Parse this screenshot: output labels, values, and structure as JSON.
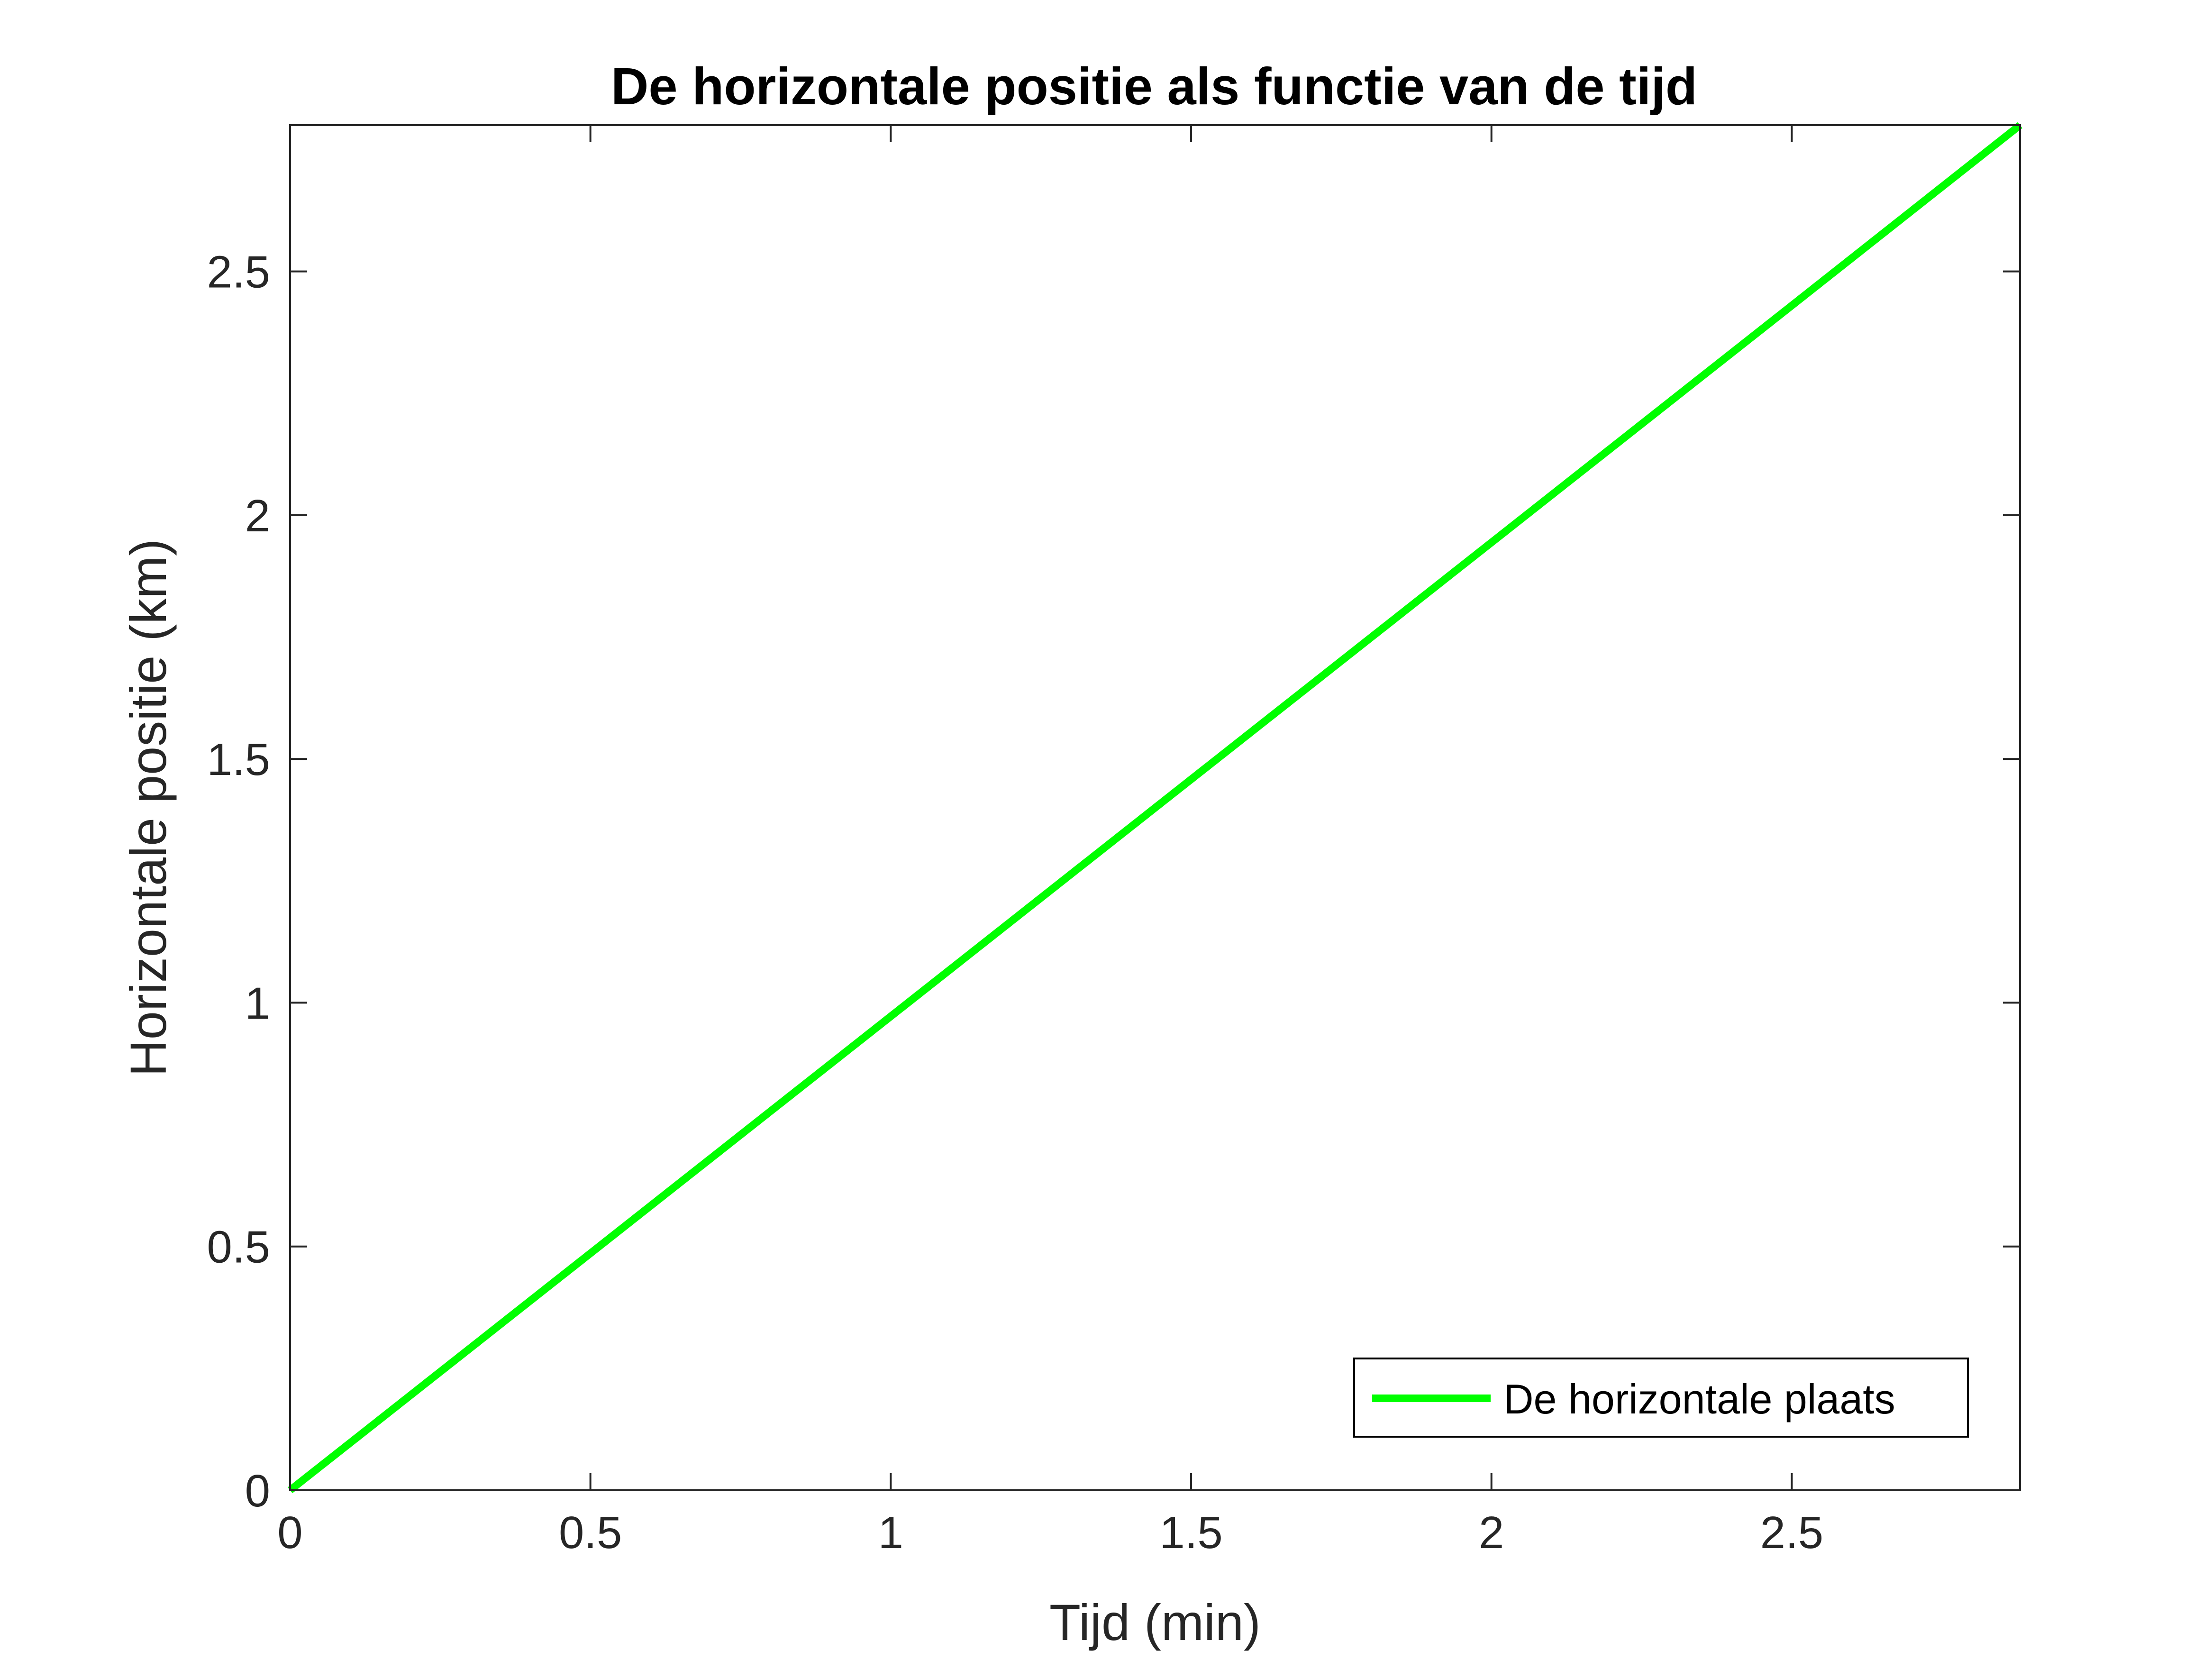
{
  "chart_data": {
    "type": "line",
    "title": "De horizontale positie als functie van de tijd",
    "xlabel": "Tijd (min)",
    "ylabel": "Horizontale positie (km)",
    "xlim": [
      0,
      2.88
    ],
    "ylim": [
      0,
      2.8
    ],
    "xticks": [
      0,
      0.5,
      1,
      1.5,
      2,
      2.5
    ],
    "xtick_labels": [
      "0",
      "0.5",
      "1",
      "1.5",
      "2",
      "2.5"
    ],
    "yticks": [
      0,
      0.5,
      1,
      1.5,
      2,
      2.5
    ],
    "ytick_labels": [
      "0",
      "0.5",
      "1",
      "1.5",
      "2",
      "2.5"
    ],
    "grid": false,
    "legend_position": "bottom-right",
    "series": [
      {
        "name": "De horizontale plaats",
        "color": "#00ff00",
        "x": [
          0,
          0.5,
          1,
          1.5,
          2,
          2.5,
          2.88
        ],
        "y": [
          0,
          0.486,
          0.972,
          1.458,
          1.944,
          2.43,
          2.8
        ]
      }
    ]
  }
}
